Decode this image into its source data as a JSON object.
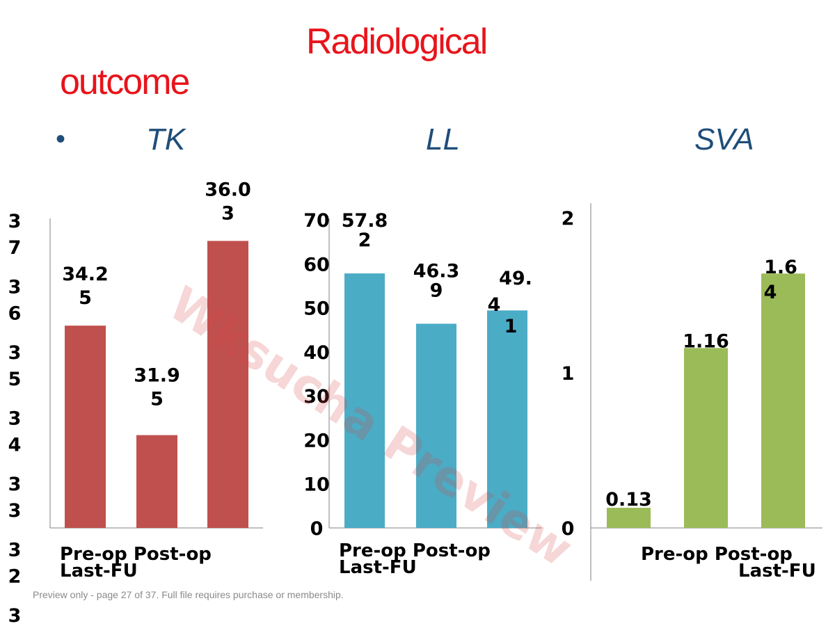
{
  "slide": {
    "title_line1": "Radiological",
    "title_line2": "outcome",
    "bullet": "•",
    "subtitles": [
      "TK",
      "LL",
      "SVA"
    ],
    "watermark": "Wksucha Preview",
    "footer": "Preview only - page 27 of 37. Full file requires purchase or membership."
  },
  "colors": {
    "title": "#e8141b",
    "subtitle": "#1f4e79",
    "tk": "#c0504d",
    "ll": "#4bacc6",
    "sva": "#9bbb59"
  },
  "chart_data": [
    {
      "type": "bar",
      "title": "TK",
      "categories": [
        "Pre-op",
        "Post-op",
        "Last-FU"
      ],
      "values": [
        34.25,
        31.95,
        36.03
      ],
      "value_labels": [
        [
          "34.2",
          "5"
        ],
        [
          "31.9",
          "5"
        ],
        [
          "36.0",
          "3"
        ]
      ],
      "category_labels": [
        "Pre-op  Post-op",
        "Last-FU"
      ],
      "ytick_labels": [
        [
          "3",
          "7"
        ],
        [
          "3",
          "6"
        ],
        [
          "3",
          "5"
        ],
        [
          "3",
          "4"
        ],
        [
          "3",
          "3"
        ],
        [
          "3",
          "2"
        ],
        [
          "3",
          ""
        ]
      ],
      "ylim": [
        30,
        37
      ],
      "grid": false,
      "legend": "none"
    },
    {
      "type": "bar",
      "title": "LL",
      "categories": [
        "Pre-op",
        "Post-op",
        "Last-FU"
      ],
      "values": [
        57.82,
        46.39,
        49.41
      ],
      "value_labels": [
        [
          "57.8",
          "2"
        ],
        [
          "46.3",
          "9"
        ],
        [
          "49.",
          "4",
          "1"
        ]
      ],
      "category_labels": [
        "Pre-op  Post-op",
        "Last-FU"
      ],
      "ytick_labels": [
        "0",
        "10",
        "20",
        "30",
        "40",
        "50",
        "60",
        "70"
      ],
      "ylim": [
        0,
        70
      ],
      "grid": false,
      "legend": "none"
    },
    {
      "type": "bar",
      "title": "SVA",
      "categories": [
        "Pre-op",
        "Post-op",
        "Last-FU"
      ],
      "values": [
        0.13,
        1.16,
        1.64
      ],
      "value_labels": [
        [
          "0.13"
        ],
        [
          "1.16"
        ],
        [
          "1.6",
          "4"
        ]
      ],
      "category_labels": [
        "Pre-op   Post-op",
        "Last-FU"
      ],
      "ytick_labels": [
        "0",
        "1",
        "2"
      ],
      "ylim": [
        0,
        2
      ],
      "grid": false,
      "legend": "none"
    }
  ]
}
